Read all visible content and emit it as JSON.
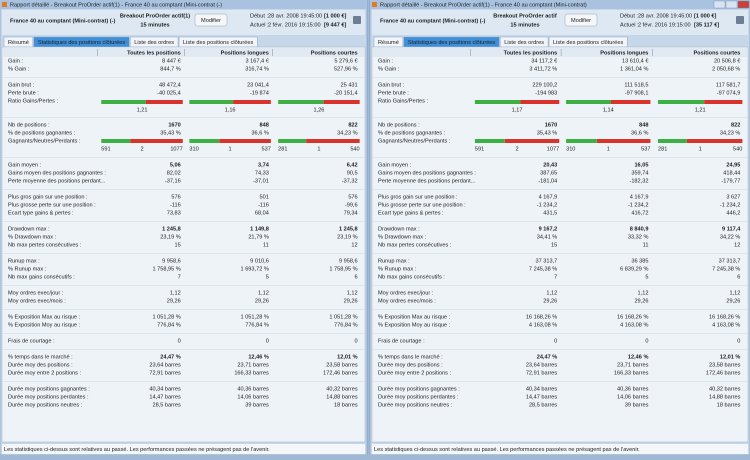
{
  "bar_colors": {
    "gain": "#3cb043",
    "neutral": "#a0a0a0",
    "loss": "#d9342b"
  },
  "panels": [
    {
      "window_title": "Rapport détaillé - Breakout ProOrder actif(1) - France 40 au comptant (Mini-contrat (-)",
      "instrument": "France 40 au comptant (Mini-contrat)  (-)",
      "strategy": "Breakout ProOrder actif(1)",
      "timeframe": "15 minutes",
      "button": "Modifier",
      "start_label": "Début :",
      "start_date": "28 avr. 2008 19:45:00",
      "start_capital": "[1 000 €]",
      "current_label": "Actuel :",
      "current_date": "2 févr. 2016 19:15:00",
      "current_capital": "[9 447 €]",
      "tabs": [
        "Résumé",
        "Statistiques des positions clôturées",
        "Liste des ordres",
        "Liste des positions clôturées"
      ],
      "active_tab": 1,
      "columns": [
        "Toutes les positions",
        "Positions longues",
        "Positions courtes"
      ],
      "groups": [
        {
          "rows": [
            {
              "label": "Gain :",
              "values": [
                "8 447 €",
                "3 167,4 €",
                "5 279,6 €"
              ],
              "color": "#2e9a2e"
            },
            {
              "label": "% Gain :",
              "values": [
                "844,7 %",
                "316,74 %",
                "527,96 %"
              ],
              "color": "#2e9a2e"
            }
          ]
        },
        {
          "rows": [
            {
              "label": "Gain brut :",
              "values": [
                {
                  "value": 48472.4,
                  "label": "48 472,4"
                },
                {
                  "value": 23041.4,
                  "label": "23 041,4"
                },
                {
                  "value": 25431,
                  "label": "25 431"
                }
              ]
            },
            {
              "label": "Perte brute :",
              "values": [
                {
                  "value": -40025.4,
                  "label": "-40 025,4"
                },
                {
                  "value": -19874,
                  "label": "-19 874"
                },
                {
                  "value": -20151.4,
                  "label": "-20 151,4"
                }
              ]
            },
            {
              "label": "Ratio Gains/Pertes :",
              "values": [
                "1,21",
                "1,16",
                "1,26"
              ],
              "bar": "ratio"
            }
          ]
        },
        {
          "rows": [
            {
              "label": "Nb de positions :",
              "values": [
                "1670",
                "848",
                "822"
              ],
              "bold": true
            },
            {
              "label": "% de positions gagnantes :",
              "values": [
                "35,43 %",
                "36,6 %",
                "34,23 %"
              ]
            },
            {
              "label": "Gagnants/Neutres/Perdants :",
              "counts": [
                [
                  591,
                  2,
                  1077
                ],
                [
                  310,
                  1,
                  537
                ],
                [
                  281,
                  1,
                  540
                ]
              ]
            }
          ]
        },
        {
          "rows": [
            {
              "label": "Gain moyen :",
              "values": [
                "5,06",
                "3,74",
                "6,42"
              ],
              "color": "#2e9a2e",
              "bold": true
            },
            {
              "label": "Gains moyen des positions gagnantes :",
              "values": [
                "82,02",
                "74,33",
                "90,5"
              ]
            },
            {
              "label": "Perte moyenne des positions perdant...",
              "values": [
                "-37,16",
                "-37,01",
                "-37,32"
              ]
            }
          ]
        },
        {
          "rows": [
            {
              "label": "Plus gros gain sur une position :",
              "values": [
                "576",
                "501",
                "576"
              ]
            },
            {
              "label": "Plus grosse perte sur une position :",
              "values": [
                "-116",
                "-116",
                "-99,6"
              ]
            },
            {
              "label": "Ecart type gains & pertes :",
              "values": [
                "73,83",
                "68,04",
                "79,34"
              ]
            }
          ]
        },
        {
          "rows": [
            {
              "label": "Drawdown max :",
              "values": [
                "1 245,8",
                "1 149,8",
                "1 245,8"
              ],
              "bold": true
            },
            {
              "label": "% Drawdown max :",
              "values": [
                "23,19 %",
                "21,79 %",
                "23,19 %"
              ]
            },
            {
              "label": "Nb max pertes consécutives :",
              "values": [
                "15",
                "11",
                "12"
              ]
            }
          ]
        },
        {
          "rows": [
            {
              "label": "Runup max :",
              "values": [
                "9 958,6",
                "9 010,6",
                "9 958,6"
              ]
            },
            {
              "label": "% Runup max :",
              "values": [
                "1 758,95 %",
                "1 693,72 %",
                "1 758,95 %"
              ]
            },
            {
              "label": "Nb max gains consécutifs :",
              "values": [
                "7",
                "5",
                "6"
              ]
            }
          ]
        },
        {
          "rows": [
            {
              "label": "Moy ordres exec/jour :",
              "values": [
                "1,12",
                "1,12",
                "1,12"
              ]
            },
            {
              "label": "Moy ordres exec/mois :",
              "values": [
                "29,26",
                "29,26",
                "29,26"
              ]
            }
          ]
        },
        {
          "rows": [
            {
              "label": "% Exposition Max au risque :",
              "values": [
                "1 051,28 %",
                "1 051,28 %",
                "1 051,28 %"
              ]
            },
            {
              "label": "% Exposition Moy au risque :",
              "values": [
                "776,84 %",
                "776,84 %",
                "776,84 %"
              ]
            }
          ]
        },
        {
          "rows": [
            {
              "label": "Frais de courtage :",
              "values": [
                "0",
                "0",
                "0"
              ]
            }
          ]
        },
        {
          "rows": [
            {
              "label": "% temps dans le marché :",
              "values": [
                "24,47 %",
                "12,46 %",
                "12,01 %"
              ],
              "bold": true
            },
            {
              "label": "Durée moy des positions :",
              "values": [
                "23,64 barres",
                "23,71 barres",
                "23,58 barres"
              ]
            },
            {
              "label": "Durée moy entre 2 positions :",
              "values": [
                "72,91 barres",
                "166,33 barres",
                "172,46 barres"
              ]
            }
          ]
        },
        {
          "rows": [
            {
              "label": "Durée moy positions gagnantes :",
              "values": [
                "40,34 barres",
                "40,36 barres",
                "40,32 barres"
              ]
            },
            {
              "label": "Durée moy positions perdantes :",
              "values": [
                "14,47 barres",
                "14,06 barres",
                "14,88 barres"
              ]
            },
            {
              "label": "Durée moy positions neutres :",
              "values": [
                "28,5 barres",
                "39 barres",
                "18 barres"
              ]
            }
          ]
        }
      ],
      "footer": "Les statistiques ci-dessus sont relatives au passé. Les performances passées ne présagent pas de l'avenir."
    },
    {
      "window_title": "Rapport détaillé - Breakout ProOrder actif(1) - France 40 au comptant (Mini-contrat)",
      "instrument": "France 40 au comptant (Mini-contrat)  (-)",
      "strategy": "Breakout ProOrder actif",
      "timeframe": "15 minutes",
      "button": "Modifier",
      "start_label": "Début :",
      "start_date": "28 avr. 2008 19:45:00",
      "start_capital": "[1 000 €]",
      "current_label": "Actuel :",
      "current_date": "2 févr. 2016 19:15:00",
      "current_capital": "[35 117 €]",
      "tabs": [
        "Résumé",
        "Statistiques des positions clôturées",
        "Liste des ordres",
        "Liste des positions clôturées"
      ],
      "active_tab": 1,
      "columns": [
        "Toutes les positions",
        "Positions longues",
        "Positions courtes"
      ],
      "groups": [
        {
          "rows": [
            {
              "label": "Gain :",
              "values": [
                "34 117,2 €",
                "13 610,4 €",
                "20 506,8 €"
              ],
              "color": "#2e9a2e"
            },
            {
              "label": "% Gain :",
              "values": [
                "3 411,72 %",
                "1 361,04 %",
                "2 050,68 %"
              ],
              "color": "#2e9a2e"
            }
          ]
        },
        {
          "rows": [
            {
              "label": "Gain brut :",
              "values": [
                {
                  "value": 229100.2,
                  "label": "229 100,2"
                },
                {
                  "value": 111518.5,
                  "label": "111 518,5"
                },
                {
                  "value": 117581.7,
                  "label": "117 581,7"
                }
              ]
            },
            {
              "label": "Perte brute :",
              "values": [
                {
                  "value": -194983,
                  "label": "-194 983"
                },
                {
                  "value": -97908.1,
                  "label": "-97 908,1"
                },
                {
                  "value": -97074.9,
                  "label": "-97 074,9"
                }
              ]
            },
            {
              "label": "Ratio Gains/Pertes :",
              "values": [
                "1,17",
                "1,14",
                "1,21"
              ],
              "bar": "ratio"
            }
          ]
        },
        {
          "rows": [
            {
              "label": "Nb de positions :",
              "values": [
                "1670",
                "848",
                "822"
              ],
              "bold": true
            },
            {
              "label": "% de positions gagnantes :",
              "values": [
                "35,43 %",
                "36,6 %",
                "34,23 %"
              ]
            },
            {
              "label": "Gagnants/Neutres/Perdants :",
              "counts": [
                [
                  591,
                  2,
                  1077
                ],
                [
                  310,
                  1,
                  537
                ],
                [
                  281,
                  1,
                  540
                ]
              ]
            }
          ]
        },
        {
          "rows": [
            {
              "label": "Gain moyen :",
              "values": [
                "20,43",
                "16,05",
                "24,95"
              ],
              "color": "#2e9a2e",
              "bold": true
            },
            {
              "label": "Gains moyen des positions gagnantes :",
              "values": [
                "387,65",
                "359,74",
                "418,44"
              ]
            },
            {
              "label": "Perte moyenne des positions perdant...",
              "values": [
                "-181,04",
                "-182,32",
                "-179,77"
              ]
            }
          ]
        },
        {
          "rows": [
            {
              "label": "Plus gros gain sur une position :",
              "values": [
                "4 167,9",
                "4 167,9",
                "3 627"
              ]
            },
            {
              "label": "Plus grosse perte sur une position :",
              "values": [
                "-1 234,2",
                "-1 234,2",
                "-1 234,2"
              ]
            },
            {
              "label": "Ecart type gains & pertes :",
              "values": [
                "431,5",
                "416,72",
                "446,2"
              ]
            }
          ]
        },
        {
          "rows": [
            {
              "label": "Drawdown max :",
              "values": [
                "9 167,2",
                "8 840,9",
                "9 117,4"
              ],
              "bold": true
            },
            {
              "label": "% Drawdown max :",
              "values": [
                "34,41 %",
                "33,32 %",
                "34,22 %"
              ]
            },
            {
              "label": "Nb max pertes consécutives :",
              "values": [
                "15",
                "11",
                "12"
              ]
            }
          ]
        },
        {
          "rows": [
            {
              "label": "Runup max :",
              "values": [
                "37 313,7",
                "36 385",
                "37 313,7"
              ]
            },
            {
              "label": "% Runup max :",
              "values": [
                "7 245,38 %",
                "6 839,29 %",
                "7 245,38 %"
              ]
            },
            {
              "label": "Nb max gains consécutifs :",
              "values": [
                "7",
                "5",
                "6"
              ]
            }
          ]
        },
        {
          "rows": [
            {
              "label": "Moy ordres exec/jour :",
              "values": [
                "1,12",
                "1,12",
                "1,12"
              ]
            },
            {
              "label": "Moy ordres exec/mois :",
              "values": [
                "29,26",
                "29,26",
                "29,26"
              ]
            }
          ]
        },
        {
          "rows": [
            {
              "label": "% Exposition Max au risque :",
              "values": [
                "16 168,26 %",
                "16 168,26 %",
                "16 168,26 %"
              ]
            },
            {
              "label": "% Exposition Moy au risque :",
              "values": [
                "4 163,08 %",
                "4 163,08 %",
                "4 163,08 %"
              ]
            }
          ]
        },
        {
          "rows": [
            {
              "label": "Frais de courtage :",
              "values": [
                "0",
                "0",
                "0"
              ]
            }
          ]
        },
        {
          "rows": [
            {
              "label": "% temps dans le marché :",
              "values": [
                "24,47 %",
                "12,46 %",
                "12,01 %"
              ],
              "bold": true
            },
            {
              "label": "Durée moy des positions :",
              "values": [
                "23,64 barres",
                "23,71 barres",
                "23,58 barres"
              ]
            },
            {
              "label": "Durée moy entre 2 positions :",
              "values": [
                "72,91 barres",
                "166,33 barres",
                "172,46 barres"
              ]
            }
          ]
        },
        {
          "rows": [
            {
              "label": "Durée moy positions gagnantes :",
              "values": [
                "40,34 barres",
                "40,36 barres",
                "40,32 barres"
              ]
            },
            {
              "label": "Durée moy positions perdantes :",
              "values": [
                "14,47 barres",
                "14,06 barres",
                "14,88 barres"
              ]
            },
            {
              "label": "Durée moy positions neutres :",
              "values": [
                "28,5 barres",
                "39 barres",
                "18 barres"
              ]
            }
          ]
        }
      ],
      "footer": "Les statistiques ci-dessus sont relatives au passé. Les performances passées ne présagent pas de l'avenir."
    }
  ]
}
